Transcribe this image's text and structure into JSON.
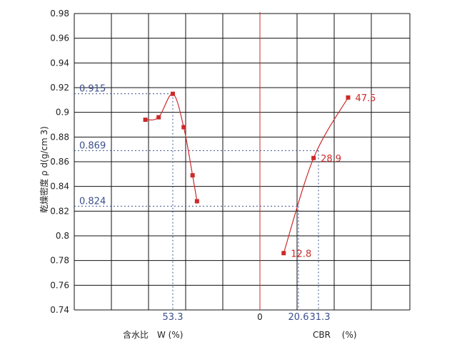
{
  "chart_data": {
    "type": "line",
    "ylabel": "乾燥密度 ρ d(g/cm  3)",
    "ylim": [
      0.74,
      0.98
    ],
    "yticks": [
      "0.98",
      "0.96",
      "0.94",
      "0.92",
      "0.9",
      "0.88",
      "0.86",
      "0.84",
      "0.82",
      "0.8",
      "0.78",
      "0.76",
      "0.74"
    ],
    "grid": true,
    "left_panel": {
      "xlabel": "含水比　W (%)",
      "series": [
        {
          "points": [
            {
              "x": 44.0,
              "y": 0.894
            },
            {
              "x": 48.5,
              "y": 0.896
            },
            {
              "x": 53.3,
              "y": 0.915
            },
            {
              "x": 57.0,
              "y": 0.888
            },
            {
              "x": 60.0,
              "y": 0.849
            },
            {
              "x": 61.5,
              "y": 0.828
            }
          ]
        }
      ],
      "marked_x": "53.3"
    },
    "right_panel": {
      "xlabel": "CBR　 (%)",
      "origin_label": "0",
      "series": [
        {
          "points": [
            {
              "x": 12.8,
              "y": 0.786,
              "label": "12.8"
            },
            {
              "x": 28.9,
              "y": 0.863,
              "label": "28.9"
            },
            {
              "x": 47.5,
              "y": 0.912,
              "label": "47.5"
            }
          ]
        }
      ],
      "marked_x": [
        "20.6",
        "31.3"
      ]
    },
    "reference_lines": [
      {
        "y": 0.915,
        "label": "0.915"
      },
      {
        "y": 0.869,
        "label": "0.869"
      },
      {
        "y": 0.824,
        "label": "0.824"
      }
    ],
    "colors": {
      "series": "#cc2a2a",
      "reference": "#3a4f8c",
      "grid": "#111111"
    }
  }
}
